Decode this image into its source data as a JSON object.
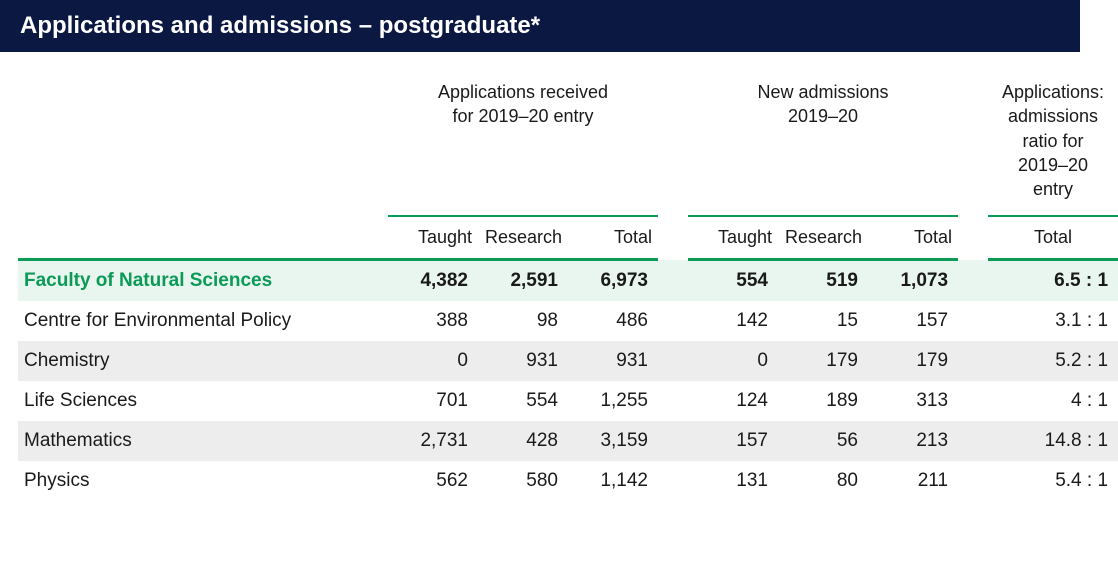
{
  "header": {
    "title": "Applications and admissions – postgraduate*"
  },
  "table": {
    "group_headers": {
      "apps_received": "Applications received\nfor  2019–20 entry",
      "new_admissions": "New admissions\n2019–20",
      "ratio": "Applications:\nadmissions\nratio for\n2019–20\nentry"
    },
    "sub_headers": {
      "taught": "Taught",
      "research": "Research",
      "total": "Total",
      "ratio_total": "Total"
    },
    "rows": [
      {
        "label": "Faculty of Natural Sciences",
        "faculty": true,
        "apps_taught": "4,382",
        "apps_research": "2,591",
        "apps_total": "6,973",
        "adm_taught": "554",
        "adm_research": "519",
        "adm_total": "1,073",
        "ratio": "6.5 : 1"
      },
      {
        "label": "Centre for Environmental Policy",
        "faculty": false,
        "apps_taught": "388",
        "apps_research": "98",
        "apps_total": "486",
        "adm_taught": "142",
        "adm_research": "15",
        "adm_total": "157",
        "ratio": "3.1 : 1"
      },
      {
        "label": "Chemistry",
        "faculty": false,
        "apps_taught": "0",
        "apps_research": "931",
        "apps_total": "931",
        "adm_taught": "0",
        "adm_research": "179",
        "adm_total": "179",
        "ratio": "5.2 : 1"
      },
      {
        "label": "Life Sciences",
        "faculty": false,
        "apps_taught": "701",
        "apps_research": "554",
        "apps_total": "1,255",
        "adm_taught": "124",
        "adm_research": "189",
        "adm_total": "313",
        "ratio": "4 : 1"
      },
      {
        "label": "Mathematics",
        "faculty": false,
        "apps_taught": "2,731",
        "apps_research": "428",
        "apps_total": "3,159",
        "adm_taught": "157",
        "adm_research": "56",
        "adm_total": "213",
        "ratio": "14.8 : 1"
      },
      {
        "label": "Physics",
        "faculty": false,
        "apps_taught": "562",
        "apps_research": "580",
        "apps_total": "1,142",
        "adm_taught": "131",
        "adm_research": "80",
        "adm_total": "211",
        "ratio": "5.4 : 1"
      }
    ]
  },
  "colors": {
    "header_bg": "#0a1842",
    "accent_green": "#0b9b57",
    "faculty_bg": "#e9f6ef",
    "alt_bg": "#ededed",
    "text": "#1a1a1a"
  }
}
